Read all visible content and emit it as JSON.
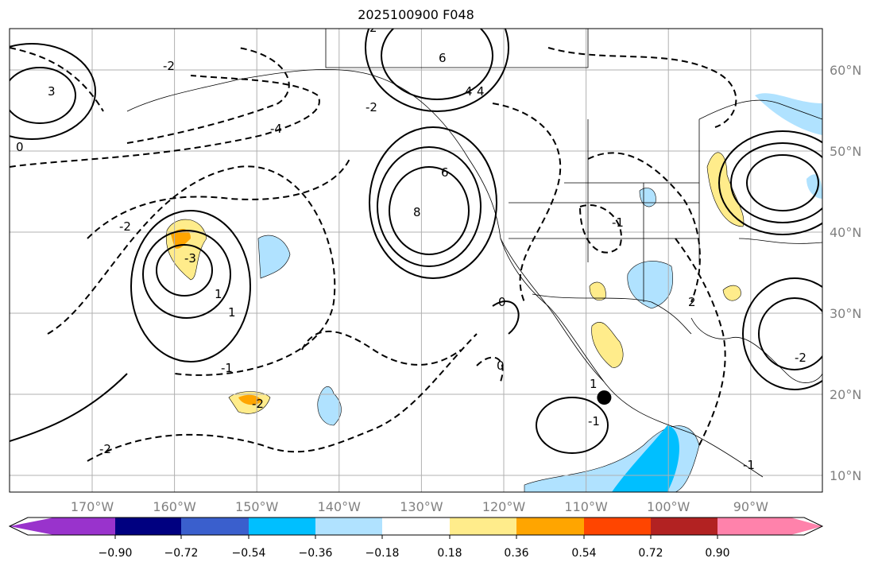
{
  "title": "2025100900 F048",
  "map": {
    "lon_labels": [
      "170°W",
      "160°W",
      "150°W",
      "140°W",
      "130°W",
      "120°W",
      "110°W",
      "100°W",
      "90°W"
    ],
    "lat_labels": [
      "60°N",
      "50°N",
      "40°N",
      "30°N",
      "20°N",
      "10°N"
    ],
    "marker": {
      "lon": -107.8,
      "lat": 19.6
    }
  },
  "colorbar": {
    "colors": [
      "#9933cc",
      "#000080",
      "#3a5fcd",
      "#00bfff",
      "#b0e2ff",
      "#ffffff",
      "#ffec8b",
      "#ffa500",
      "#ff4500",
      "#b22222",
      "#ff82ab"
    ],
    "labels": [
      "−0.90",
      "−0.72",
      "−0.54",
      "−0.36",
      "−0.18",
      "0.18",
      "0.36",
      "0.54",
      "0.72",
      "0.90"
    ]
  },
  "contour_labels": [
    "-4",
    "-2",
    "2",
    "4",
    "6",
    "-2",
    "-3",
    "3",
    "6",
    "8",
    "-1",
    "1",
    "0",
    "-1",
    "-2",
    "-2",
    "4",
    "1",
    "-1",
    "0",
    "-2",
    "-1",
    "2",
    "-2",
    "0",
    "1"
  ]
}
